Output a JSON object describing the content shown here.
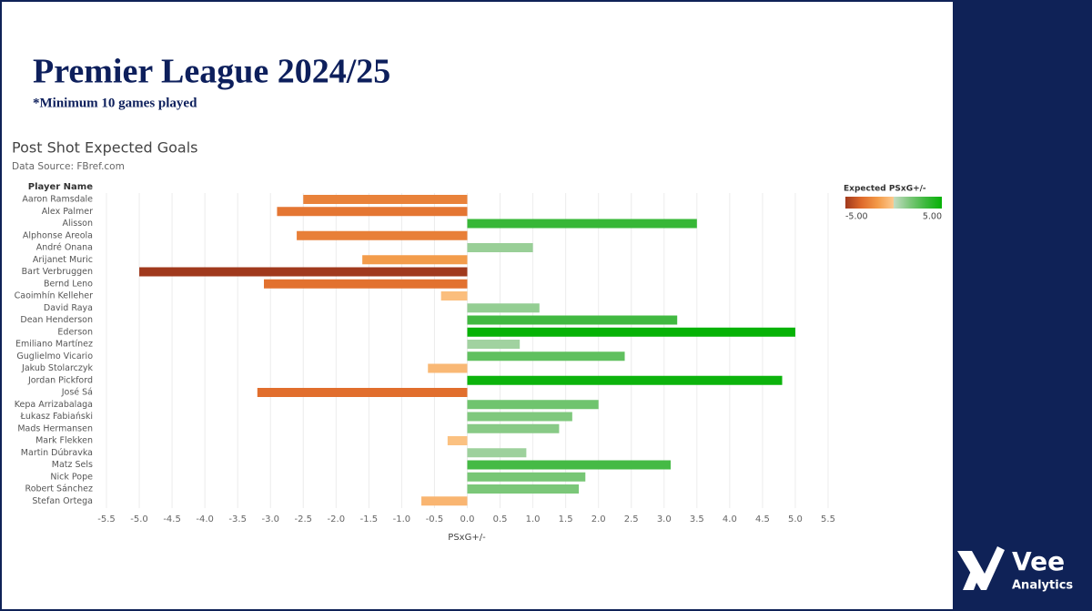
{
  "header": {
    "title": "Premier League 2024/25",
    "subtitle": "*Minimum 10 games played"
  },
  "chart_data": {
    "type": "bar",
    "orientation": "horizontal",
    "title": "Post Shot Expected Goals",
    "subtitle": "Data Source: FBref.com",
    "y_label": "Player Name",
    "x_label": "PSxG+/-",
    "categories": [
      "Aaron Ramsdale",
      "Alex Palmer",
      "Alisson",
      "Alphonse Areola",
      "André Onana",
      "Arijanet Muric",
      "Bart Verbruggen",
      "Bernd Leno",
      "Caoimhín Kelleher",
      "David Raya",
      "Dean Henderson",
      "Ederson",
      "Emiliano Martínez",
      "Guglielmo Vicario",
      "Jakub Stolarczyk",
      "Jordan Pickford",
      "José Sá",
      "Kepa Arrizabalaga",
      "Łukasz Fabiański",
      "Mads Hermansen",
      "Mark Flekken",
      "Martin Dúbravka",
      "Matz Sels",
      "Nick Pope",
      "Robert Sánchez",
      "Stefan Ortega"
    ],
    "values": [
      -2.5,
      -2.9,
      3.5,
      -2.6,
      1.0,
      -1.6,
      -5.0,
      -3.1,
      -0.4,
      1.1,
      3.2,
      5.0,
      0.8,
      2.4,
      -0.6,
      4.8,
      -3.2,
      2.0,
      1.6,
      1.4,
      -0.3,
      0.9,
      3.1,
      1.8,
      1.7,
      -0.7
    ],
    "xlim": [
      -5.5,
      5.5
    ],
    "xticks": [
      -5.5,
      {
        "value": -5,
        "label": "-5.0"
      },
      -4.5,
      {
        "value": -4,
        "label": "-4.0"
      },
      -3.5,
      {
        "value": -3,
        "label": "-3.0"
      },
      -2.5,
      {
        "value": -2,
        "label": "-2.0"
      },
      -1.5,
      {
        "value": -1,
        "label": "-1.0"
      },
      -0.5,
      {
        "value": 0,
        "label": "0.0"
      },
      0.5,
      {
        "value": 1,
        "label": "1.0"
      },
      1.5,
      {
        "value": 2,
        "label": "2.0"
      },
      2.5,
      {
        "value": 3,
        "label": "3.0"
      },
      3.5,
      {
        "value": 4,
        "label": "4.0"
      },
      4.5,
      {
        "value": 5,
        "label": "5.0"
      },
      5.5
    ],
    "grid": true,
    "legend": {
      "title": "Expected PSxG+/-",
      "position": "upper right",
      "min": {
        "value": -5,
        "label": "-5.00"
      },
      "max": {
        "value": 5,
        "label": "5.00"
      },
      "negative_colors": [
        "#fdc98e",
        "#f39a48",
        "#df6a2b",
        "#a0391d"
      ],
      "positive_colors": [
        "#c4dcc3",
        "#7cc77a",
        "#3cb83c",
        "#06b206"
      ]
    }
  },
  "logo": {
    "name": "Vee",
    "tagline": "Analytics"
  }
}
